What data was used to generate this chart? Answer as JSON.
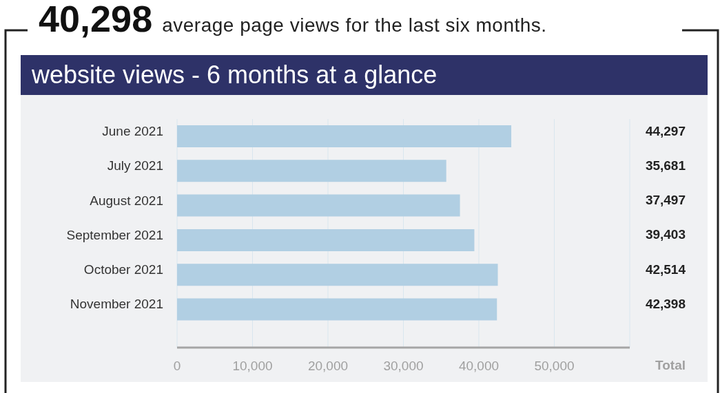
{
  "chart_data": {
    "type": "bar",
    "orientation": "horizontal",
    "title": "40,298 average page views for the last six months.",
    "subtitle": "website views - 6 months at a glance",
    "categories": [
      "June 2021",
      "July 2021",
      "August 2021",
      "September 2021",
      "October 2021",
      "November 2021"
    ],
    "values": [
      44297,
      35681,
      37497,
      39403,
      42514,
      42398
    ],
    "color": "#b1cfe3",
    "value_labels": [
      "44,297",
      "35,681",
      "37,497",
      "39,403",
      "42,514",
      "42,398"
    ],
    "xlim": [
      0,
      60000
    ],
    "xticks": [
      {
        "value": 0,
        "label": "0"
      },
      {
        "value": 10000,
        "label": "10,000"
      },
      {
        "value": 20000,
        "label": "20,000"
      },
      {
        "value": 30000,
        "label": "30,000"
      },
      {
        "value": 40000,
        "label": "40,000"
      },
      {
        "value": 50000,
        "label": "50,000"
      },
      {
        "value": 60000,
        "label": null
      }
    ],
    "grid": "x",
    "legend": false,
    "annotations": [
      "Total"
    ]
  }
}
